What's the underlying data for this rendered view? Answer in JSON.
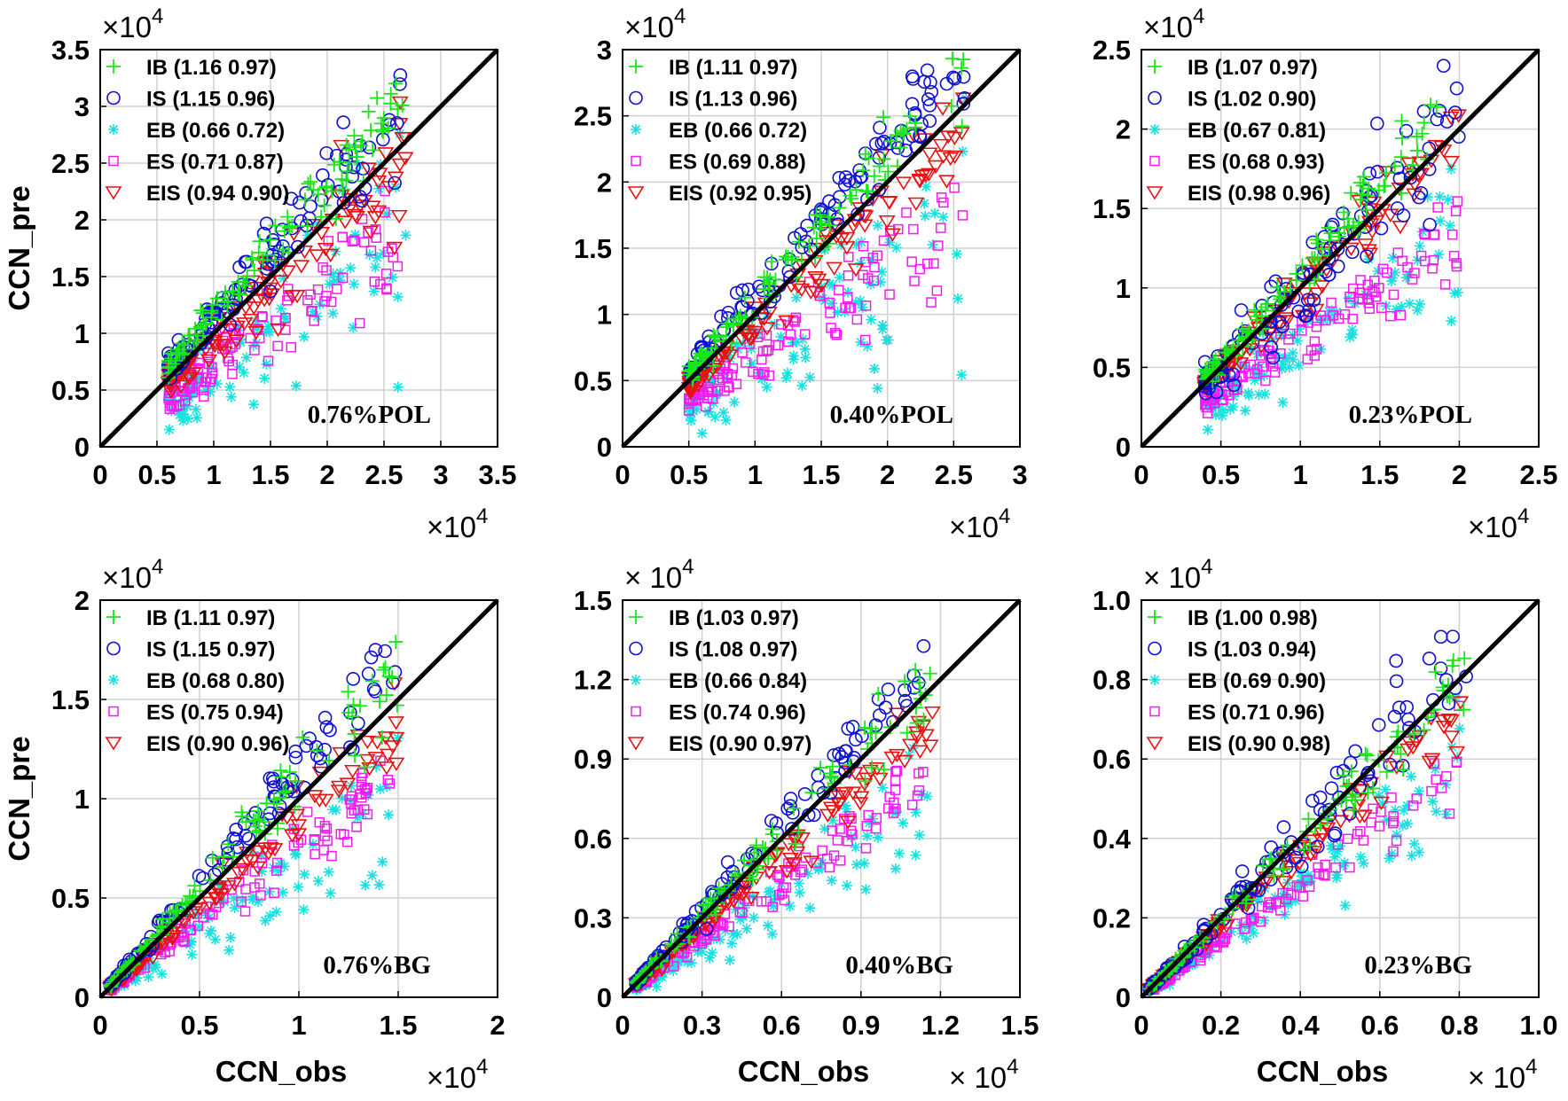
{
  "chart_data": [
    {
      "type": "scatter",
      "panel_label": "0.76%POL",
      "ylabel": "CCN_pre",
      "xlabel": "",
      "x_exponent": "×10",
      "y_exponent": "×10",
      "exponent_power": "4",
      "xlim": [
        0,
        3.5
      ],
      "ylim": [
        0,
        3.5
      ],
      "ticks": [
        "0",
        "0.5",
        "1",
        "1.5",
        "2",
        "2.5",
        "3",
        "3.5"
      ],
      "tick_values": [
        0,
        0.5,
        1,
        1.5,
        2,
        2.5,
        3,
        3.5
      ],
      "obs_range": [
        0.6,
        2.7
      ],
      "series": [
        {
          "name": "IB",
          "slope": 1.16,
          "r": 0.97,
          "legend": "IB (1.16 0.97)"
        },
        {
          "name": "IS",
          "slope": 1.15,
          "r": 0.96,
          "legend": "IS (1.15 0.96)"
        },
        {
          "name": "EB",
          "slope": 0.66,
          "r": 0.72,
          "legend": "EB (0.66 0.72)"
        },
        {
          "name": "ES",
          "slope": 0.71,
          "r": 0.87,
          "legend": "ES (0.71 0.87)"
        },
        {
          "name": "EIS",
          "slope": 0.94,
          "r": 0.9,
          "legend": "EIS (0.94 0.90)"
        }
      ]
    },
    {
      "type": "scatter",
      "panel_label": "0.40%POL",
      "ylabel": "",
      "xlabel": "",
      "x_exponent": "×10",
      "y_exponent": "×10",
      "exponent_power": "4",
      "xlim": [
        0,
        3
      ],
      "ylim": [
        0,
        3
      ],
      "ticks": [
        "0",
        "0.5",
        "1",
        "1.5",
        "2",
        "2.5",
        "3"
      ],
      "tick_values": [
        0,
        0.5,
        1,
        1.5,
        2,
        2.5,
        3
      ],
      "obs_range": [
        0.5,
        2.6
      ],
      "series": [
        {
          "name": "IB",
          "slope": 1.11,
          "r": 0.97,
          "legend": "IB (1.11 0.97)"
        },
        {
          "name": "IS",
          "slope": 1.13,
          "r": 0.96,
          "legend": "IS (1.13 0.96)"
        },
        {
          "name": "EB",
          "slope": 0.66,
          "r": 0.72,
          "legend": "EB (0.66 0.72)"
        },
        {
          "name": "ES",
          "slope": 0.69,
          "r": 0.88,
          "legend": "ES (0.69 0.88)"
        },
        {
          "name": "EIS",
          "slope": 0.92,
          "r": 0.95,
          "legend": "EIS (0.92 0.95)"
        }
      ]
    },
    {
      "type": "scatter",
      "panel_label": "0.23%POL",
      "ylabel": "",
      "xlabel": "",
      "x_exponent": "×10",
      "y_exponent": "×10",
      "exponent_power": "4",
      "xlim": [
        0,
        2.5
      ],
      "ylim": [
        0,
        2.5
      ],
      "ticks": [
        "0",
        "0.5",
        "1",
        "1.5",
        "2",
        "2.5"
      ],
      "tick_values": [
        0,
        0.5,
        1,
        1.5,
        2,
        2.5
      ],
      "obs_range": [
        0.4,
        2.0
      ],
      "series": [
        {
          "name": "IB",
          "slope": 1.07,
          "r": 0.97,
          "legend": "IB (1.07 0.97)"
        },
        {
          "name": "IS",
          "slope": 1.02,
          "r": 0.9,
          "legend": "IS (1.02 0.90)"
        },
        {
          "name": "EB",
          "slope": 0.67,
          "r": 0.81,
          "legend": "EB (0.67 0.81)"
        },
        {
          "name": "ES",
          "slope": 0.68,
          "r": 0.93,
          "legend": "ES (0.68 0.93)"
        },
        {
          "name": "EIS",
          "slope": 0.98,
          "r": 0.96,
          "legend": "EIS (0.98 0.96)"
        }
      ]
    },
    {
      "type": "scatter",
      "panel_label": "0.76%BG",
      "ylabel": "CCN_pre",
      "xlabel": "CCN_obs",
      "x_exponent": "×10",
      "y_exponent": "×10",
      "exponent_power": "4",
      "xlim": [
        0,
        2
      ],
      "ylim": [
        0,
        2
      ],
      "ticks": [
        "0",
        "0.5",
        "1",
        "1.5",
        "2"
      ],
      "tick_values": [
        0,
        0.5,
        1,
        1.5,
        2
      ],
      "obs_range": [
        0.05,
        1.5
      ],
      "series": [
        {
          "name": "IB",
          "slope": 1.11,
          "r": 0.97,
          "legend": "IB (1.11 0.97)"
        },
        {
          "name": "IS",
          "slope": 1.15,
          "r": 0.97,
          "legend": "IS (1.15 0.97)"
        },
        {
          "name": "EB",
          "slope": 0.68,
          "r": 0.8,
          "legend": "EB (0.68 0.80)"
        },
        {
          "name": "ES",
          "slope": 0.75,
          "r": 0.94,
          "legend": "ES (0.75 0.94)"
        },
        {
          "name": "EIS",
          "slope": 0.9,
          "r": 0.96,
          "legend": "EIS (0.90 0.96)"
        }
      ]
    },
    {
      "type": "scatter",
      "panel_label": "0.40%BG",
      "ylabel": "",
      "xlabel": "CCN_obs",
      "x_exponent": "× 10",
      "y_exponent": "× 10",
      "exponent_power": "4",
      "xlim": [
        0,
        1.5
      ],
      "ylim": [
        0,
        1.5
      ],
      "ticks": [
        "0",
        "0.3",
        "0.6",
        "0.9",
        "1.2",
        "1.5"
      ],
      "tick_values": [
        0,
        0.3,
        0.6,
        0.9,
        1.2,
        1.5
      ],
      "obs_range": [
        0.05,
        1.17
      ],
      "series": [
        {
          "name": "IB",
          "slope": 1.03,
          "r": 0.97,
          "legend": "IB (1.03 0.97)"
        },
        {
          "name": "IS",
          "slope": 1.08,
          "r": 0.97,
          "legend": "IS (1.08 0.97)"
        },
        {
          "name": "EB",
          "slope": 0.66,
          "r": 0.84,
          "legend": "EB (0.66 0.84)"
        },
        {
          "name": "ES",
          "slope": 0.74,
          "r": 0.96,
          "legend": "ES (0.74 0.96)"
        },
        {
          "name": "EIS",
          "slope": 0.9,
          "r": 0.97,
          "legend": "EIS (0.90 0.97)"
        }
      ]
    },
    {
      "type": "scatter",
      "panel_label": "0.23%BG",
      "ylabel": "",
      "xlabel": "CCN_obs",
      "x_exponent": "× 10",
      "y_exponent": "× 10",
      "exponent_power": "4",
      "xlim": [
        0,
        1.0
      ],
      "ylim": [
        0,
        1.0
      ],
      "ticks": [
        "0",
        "0.2",
        "0.4",
        "0.6",
        "0.8",
        "1.0"
      ],
      "tick_values": [
        0,
        0.2,
        0.4,
        0.6,
        0.8,
        1.0
      ],
      "obs_range": [
        0.02,
        0.82
      ],
      "series": [
        {
          "name": "IB",
          "slope": 1.0,
          "r": 0.98,
          "legend": "IB (1.00 0.98)"
        },
        {
          "name": "IS",
          "slope": 1.03,
          "r": 0.94,
          "legend": "IS (1.03 0.94)"
        },
        {
          "name": "EB",
          "slope": 0.69,
          "r": 0.9,
          "legend": "EB (0.69 0.90)"
        },
        {
          "name": "ES",
          "slope": 0.71,
          "r": 0.96,
          "legend": "ES (0.71 0.96)"
        },
        {
          "name": "EIS",
          "slope": 0.9,
          "r": 0.98,
          "legend": "EIS (0.90 0.98)"
        }
      ]
    }
  ],
  "colors": {
    "IB": "#19e619",
    "IS": "#1010d0",
    "EB": "#19e0e0",
    "ES": "#f01cf0",
    "EIS": "#e81010",
    "line": "#000000",
    "grid": "#d0d0d0"
  },
  "markers": {
    "IB": "plus",
    "IS": "circle",
    "EB": "asterisk",
    "ES": "square",
    "EIS": "triangle-down"
  }
}
